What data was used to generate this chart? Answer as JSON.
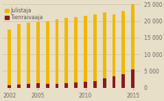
{
  "years": [
    2002,
    2003,
    2004,
    2005,
    2006,
    2007,
    2008,
    2009,
    2010,
    2011,
    2012,
    2013,
    2014,
    2015
  ],
  "julistaja": [
    17500,
    19000,
    19500,
    19700,
    20000,
    20500,
    21000,
    21200,
    21500,
    22000,
    22500,
    22000,
    23000,
    25000
  ],
  "tienraivaaja": [
    700,
    900,
    1100,
    1300,
    1200,
    1200,
    1400,
    1600,
    1800,
    2000,
    2800,
    3500,
    4000,
    5500
  ],
  "bar_color_julistaja": "#f0b800",
  "bar_color_tienraivaaja": "#8b1a1a",
  "background_color": "#e8dfc8",
  "grid_color": "#c8bfa8",
  "ylim": [
    0,
    25000
  ],
  "yticks": [
    0,
    5000,
    10000,
    15000,
    20000,
    25000
  ],
  "xtick_years": [
    2002,
    2005,
    2010,
    2015
  ],
  "legend_julistaja": "Julistaja",
  "legend_tienraivaaja": "Tienraivaaja",
  "bar_width": 0.35,
  "tick_fontsize": 5.5
}
